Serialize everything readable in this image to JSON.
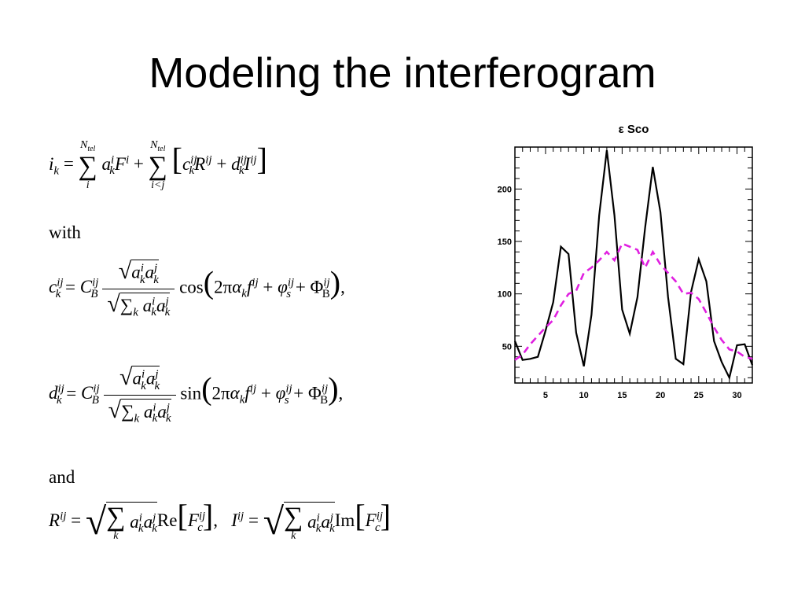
{
  "slide": {
    "title": "Modeling the interferogram",
    "word_with": "with",
    "word_and": "and"
  },
  "equations": {
    "ik_lhs": "i",
    "sum_upper": "N",
    "sum_upper_sub": "tel",
    "sum1_lower": "i",
    "sum2_lower": "i<j",
    "cos": "cos",
    "sin": "sin",
    "Re": "Re",
    "Im": "Im",
    "sum_k": "k"
  },
  "chart_data": {
    "type": "line",
    "title": "ε  Sco",
    "xlabel": "",
    "ylabel": "",
    "xlim": [
      1,
      32
    ],
    "ylim": [
      15,
      240
    ],
    "xticks": [
      5,
      10,
      15,
      20,
      25,
      30
    ],
    "yticks": [
      50,
      100,
      150,
      200
    ],
    "grid": false,
    "series": [
      {
        "style": "solid",
        "color": "#000000",
        "x": [
          1,
          2,
          3,
          4,
          5,
          6,
          7,
          8,
          9,
          10,
          11,
          12,
          13,
          14,
          15,
          16,
          17,
          18,
          19,
          20,
          21,
          22,
          23,
          24,
          25,
          26,
          27,
          28,
          29,
          30,
          31,
          32
        ],
        "y": [
          55,
          37,
          38,
          40,
          65,
          92,
          145,
          138,
          63,
          31,
          80,
          175,
          237,
          175,
          85,
          62,
          97,
          163,
          221,
          178,
          97,
          38,
          33,
          102,
          133,
          112,
          55,
          35,
          20,
          51,
          52,
          32
        ]
      },
      {
        "style": "dashed",
        "color": "#e020e0",
        "x": [
          1,
          2,
          3,
          4,
          5,
          6,
          7,
          8,
          9,
          10,
          11,
          12,
          13,
          14,
          15,
          16,
          17,
          18,
          19,
          20,
          21,
          22,
          23,
          24,
          25,
          26,
          27,
          28,
          29,
          30,
          31,
          32
        ],
        "y": [
          37,
          42,
          52,
          60,
          68,
          75,
          89,
          100,
          103,
          120,
          125,
          132,
          140,
          132,
          148,
          145,
          142,
          125,
          140,
          128,
          120,
          112,
          100,
          101,
          95,
          82,
          68,
          56,
          47,
          45,
          40,
          38
        ]
      }
    ]
  }
}
